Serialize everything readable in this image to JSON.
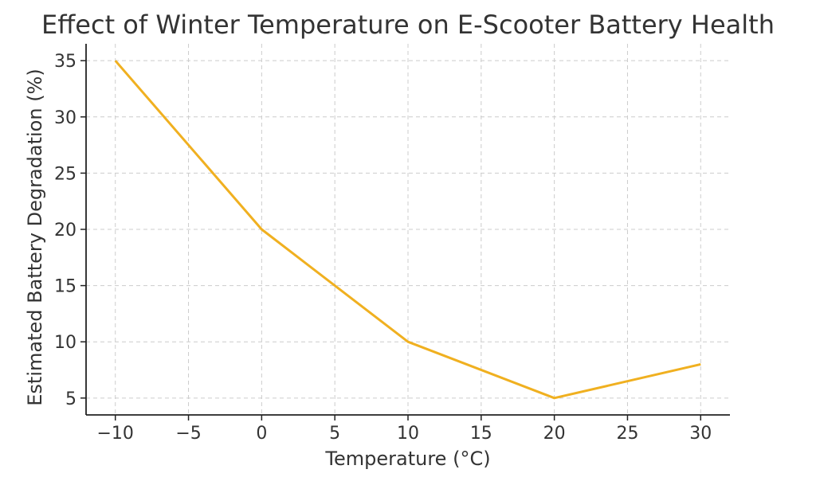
{
  "chart_data": {
    "type": "line",
    "title": "Effect of Winter Temperature on E-Scooter Battery Health",
    "xlabel": "Temperature (°C)",
    "ylabel": "Estimated Battery Degradation (%)",
    "x": [
      -10,
      0,
      10,
      20,
      30
    ],
    "values": [
      35,
      20,
      10,
      5,
      8
    ],
    "xlim": [
      -12,
      32
    ],
    "ylim": [
      3.5,
      36.5
    ],
    "xticks": [
      -10,
      -5,
      0,
      5,
      10,
      15,
      20,
      25,
      30
    ],
    "xtick_labels": [
      "−10",
      "−5",
      "0",
      "5",
      "10",
      "15",
      "20",
      "25",
      "30"
    ],
    "yticks": [
      5,
      10,
      15,
      20,
      25,
      30,
      35
    ],
    "ytick_labels": [
      "5",
      "10",
      "15",
      "20",
      "25",
      "30",
      "35"
    ],
    "grid": true,
    "line_color": "#f0b020",
    "legend": "none"
  }
}
